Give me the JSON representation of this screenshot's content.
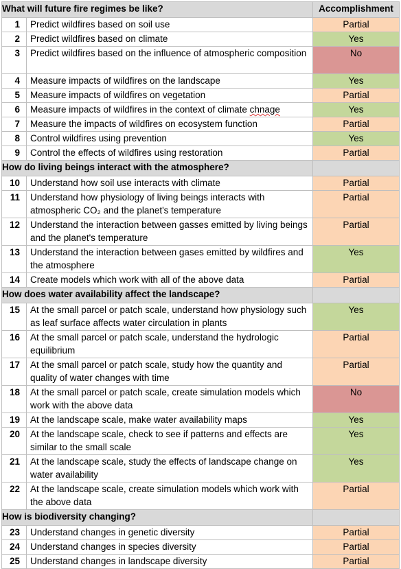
{
  "colors": {
    "partial": "#fcd5b4",
    "yes": "#c4d79b",
    "no": "#da9694",
    "header": "#d9d9d9"
  },
  "accomplishment_header": "Accomplishment",
  "sections": [
    {
      "title": "What will future fire regimes be like?",
      "rows": [
        {
          "num": "1",
          "task": "Predict wildfires based on soil use",
          "status": "Partial"
        },
        {
          "num": "2",
          "task": "Predict wildfires based on climate",
          "status": "Yes"
        },
        {
          "num": "3",
          "task": "Predict wildfires based on the influence of atmospheric composition",
          "status": "No"
        },
        {
          "num": "4",
          "task": "Measure impacts of wildfires on the landscape",
          "status": "Yes"
        },
        {
          "num": "5",
          "task": "Measure impacts of wildfires on vegetation",
          "status": "Partial"
        },
        {
          "num": "6",
          "task": "Measure impacts of wildfires in the context of climate chnage",
          "status": "Yes"
        },
        {
          "num": "7",
          "task": "Measure the impacts of wildfires on ecosystem function",
          "status": "Partial"
        },
        {
          "num": "8",
          "task": "Control wildfires using prevention",
          "status": "Yes"
        },
        {
          "num": "9",
          "task": "Control the effects of wildfires using restoration",
          "status": "Partial"
        }
      ]
    },
    {
      "title": "How do living beings interact with the atmosphere?",
      "rows": [
        {
          "num": "10",
          "task": "Understand how soil use interacts with climate",
          "status": "Partial"
        },
        {
          "num": "11",
          "task": "Understand how physiology of living beings interacts with atmospheric CO₂ and the planet's temperature",
          "status": "Partial"
        },
        {
          "num": "12",
          "task": "Understand the interaction between gasses emitted by living beings and the planet's temperature",
          "status": "Partial"
        },
        {
          "num": "13",
          "task": "Understand the interaction between gases emitted by wildfires and the atmosphere",
          "status": "Yes"
        },
        {
          "num": "14",
          "task": "Create models which work with all of the above data",
          "status": "Partial"
        }
      ]
    },
    {
      "title": "How does water availability affect the landscape?",
      "rows": [
        {
          "num": "15",
          "task": "At the small parcel or patch scale, understand how physiology such as leaf surface affects water circulation in plants",
          "status": "Yes"
        },
        {
          "num": "16",
          "task": "At the small parcel or patch scale, understand the hydrologic equilibrium",
          "status": "Partial"
        },
        {
          "num": "17",
          "task": "At the small parcel or patch scale, study how the quantity and quality of water changes with time",
          "status": "Partial"
        },
        {
          "num": "18",
          "task": "At the small parcel or patch scale, create simulation models which work with the above data",
          "status": "No"
        },
        {
          "num": "19",
          "task": "At the landscape scale, make water availability maps",
          "status": "Yes"
        },
        {
          "num": "20",
          "task": "At the landscape scale, check to see if patterns and effects are similar to the small scale",
          "status": "Yes"
        },
        {
          "num": "21",
          "task": "At the landscape scale, study the effects of landscape change on water availability",
          "status": "Yes"
        },
        {
          "num": "22",
          "task": "At the landscape scale, create simulation models which work with the above data",
          "status": "Partial"
        }
      ]
    },
    {
      "title": "How is biodiversity changing?",
      "rows": [
        {
          "num": "23",
          "task": "Understand changes in genetic diversity",
          "status": "Partial"
        },
        {
          "num": "24",
          "task": "Understand changes in species diversity",
          "status": "Partial"
        },
        {
          "num": "25",
          "task": "Understand changes in landscape diversity",
          "status": "Partial"
        }
      ]
    }
  ]
}
